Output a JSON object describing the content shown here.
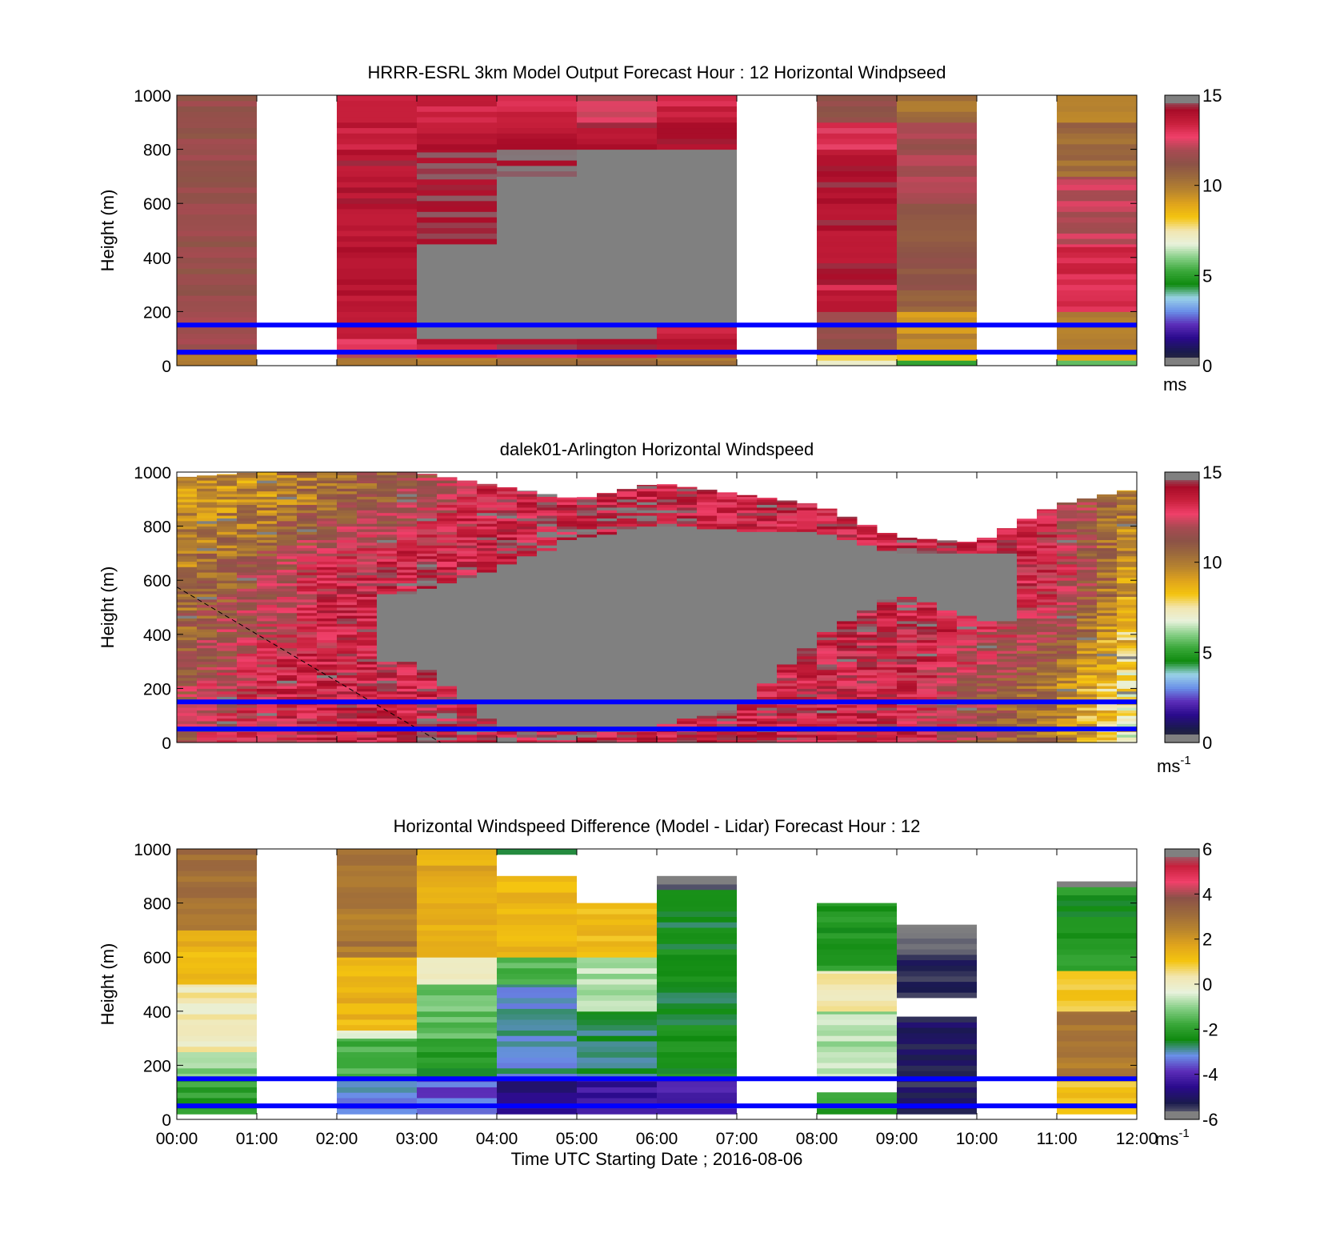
{
  "colors": {
    "background": "#ffffff",
    "no_data_gray": "#808080",
    "reference_lines": "#0000ff",
    "colormap_speed": [
      "#303030",
      "#1a1a4e",
      "#2a0a8c",
      "#5b2db8",
      "#6a90e8",
      "#9ad2e8",
      "#108a10",
      "#3aa83a",
      "#86cf86",
      "#e8f2dc",
      "#f2e6b0",
      "#f4c410",
      "#e0a41c",
      "#b8842e",
      "#9c6a3c",
      "#8c5248",
      "#a84a52",
      "#f0406a",
      "#c8203c",
      "#a80c28",
      "#808080"
    ],
    "colormap_diff": [
      "#808080",
      "#1a1a4e",
      "#2a0a8c",
      "#5b2db8",
      "#6a90e8",
      "#108a10",
      "#3aa83a",
      "#86cf86",
      "#e8f2dc",
      "#f2e6b0",
      "#f4c410",
      "#e0a41c",
      "#b8842e",
      "#9c6a3c",
      "#8c5248",
      "#f0406a",
      "#c8203c",
      "#808080"
    ]
  },
  "chart_data": [
    {
      "type": "heatmap",
      "panel": "model",
      "title": "HRRR-ESRL 3km Model Output   Forecast Hour : 12 Horizontal Windpseed",
      "ylabel": "Height (m)",
      "ylim": [
        0,
        1000
      ],
      "yticks": [
        "0",
        "200",
        "400",
        "600",
        "800",
        "1000"
      ],
      "colorbar": {
        "ticks": [
          "0",
          "5",
          "10",
          "15"
        ],
        "range": [
          0,
          15
        ],
        "unit": "ms",
        "unit_sup": ""
      },
      "hlines": [
        50,
        150
      ],
      "grid": false,
      "columns": [
        {
          "t0": 0,
          "t1": 1,
          "layers": [
            [
              0,
              20,
              10.5
            ],
            [
              20,
              40,
              9.5
            ],
            [
              40,
              200,
              11.8
            ],
            [
              200,
              1000,
              11.5
            ]
          ]
        },
        {
          "t0": 2,
          "t1": 3,
          "layers": [
            [
              0,
              30,
              10.2
            ],
            [
              30,
              60,
              12.0
            ],
            [
              60,
              100,
              13.0
            ],
            [
              100,
              600,
              13.8
            ],
            [
              600,
              800,
              14.0
            ],
            [
              800,
              900,
              13.6
            ],
            [
              900,
              1000,
              13.2
            ]
          ]
        },
        {
          "t0": 3,
          "t1": 4,
          "layers": [
            [
              0,
              30,
              10.2
            ],
            [
              30,
              60,
              13.4
            ],
            [
              60,
              100,
              13.8
            ],
            [
              100,
              450,
              null
            ],
            [
              450,
              800,
              14.4
            ],
            [
              800,
              900,
              13.8
            ],
            [
              900,
              1000,
              13.5
            ]
          ]
        },
        {
          "t0": 4,
          "t1": 5,
          "layers": [
            [
              0,
              30,
              10.2
            ],
            [
              30,
              60,
              13.4
            ],
            [
              60,
              100,
              14.2
            ],
            [
              100,
              700,
              null
            ],
            [
              700,
              800,
              14.6
            ],
            [
              800,
              900,
              13.8
            ],
            [
              900,
              1000,
              13.3
            ]
          ]
        },
        {
          "t0": 5,
          "t1": 6,
          "layers": [
            [
              0,
              30,
              10.2
            ],
            [
              30,
              60,
              13.4
            ],
            [
              60,
              100,
              14.2
            ],
            [
              100,
              800,
              null
            ],
            [
              800,
              900,
              14.0
            ],
            [
              900,
              1000,
              12.2
            ]
          ]
        },
        {
          "t0": 6,
          "t1": 7,
          "layers": [
            [
              0,
              30,
              10.2
            ],
            [
              30,
              60,
              12.0
            ],
            [
              60,
              150,
              13.6
            ],
            [
              150,
              800,
              null
            ],
            [
              800,
              900,
              14.2
            ],
            [
              900,
              1000,
              13.5
            ]
          ]
        },
        {
          "t0": 8,
          "t1": 9,
          "layers": [
            [
              0,
              20,
              7.0
            ],
            [
              20,
              40,
              8.2
            ],
            [
              40,
              200,
              11.5
            ],
            [
              200,
              300,
              13.5
            ],
            [
              300,
              800,
              14.1
            ],
            [
              800,
              900,
              12.9
            ],
            [
              900,
              1000,
              11.5
            ]
          ]
        },
        {
          "t0": 9,
          "t1": 10,
          "layers": [
            [
              0,
              20,
              5.5
            ],
            [
              20,
              40,
              8.5
            ],
            [
              40,
              200,
              9.5
            ],
            [
              200,
              600,
              11.0
            ],
            [
              600,
              900,
              11.8
            ],
            [
              900,
              1000,
              10.2
            ]
          ]
        },
        {
          "t0": 11,
          "t1": 12,
          "layers": [
            [
              0,
              20,
              6.0
            ],
            [
              20,
              40,
              8.5
            ],
            [
              40,
              200,
              9.8
            ],
            [
              200,
              450,
              13.2
            ],
            [
              450,
              700,
              12.2
            ],
            [
              700,
              900,
              10.5
            ],
            [
              900,
              1000,
              9.6
            ]
          ]
        }
      ]
    },
    {
      "type": "heatmap",
      "panel": "lidar",
      "title": "dalek01-Arlington  Horizontal Windspeed",
      "ylabel": "Height (m)",
      "ylim": [
        0,
        1000
      ],
      "yticks": [
        "0",
        "200",
        "400",
        "600",
        "800",
        "1000"
      ],
      "colorbar": {
        "ticks": [
          "0",
          "5",
          "10",
          "15"
        ],
        "range": [
          0,
          15
        ],
        "unit": "ms",
        "unit_sup": "-1"
      },
      "hlines": [
        50,
        150
      ],
      "grid": false,
      "dashed_line": [
        [
          0,
          575
        ],
        [
          3.3,
          0
        ]
      ],
      "profile_bin_hours": 0.25,
      "sample_times": [
        0,
        1,
        2,
        3,
        4,
        5,
        6,
        7,
        8,
        9,
        10,
        11,
        12
      ],
      "low_layer_speed": [
        11.5,
        13.0,
        13.5,
        13.8,
        14.0,
        14.0,
        13.5,
        13.8,
        13.5,
        13.5,
        11.5,
        10.0,
        7.0
      ],
      "mid_layer_speed": [
        10.0,
        11.5,
        13.5,
        14.0,
        14.0,
        14.0,
        14.0,
        14.0,
        14.0,
        14.0,
        14.0,
        13.0,
        9.0
      ],
      "upper_layer_speed": [
        9.5,
        9.5,
        10.5,
        11.5,
        13.5,
        14.0,
        14.0,
        13.5,
        13.5,
        13.5,
        13.5,
        12.5,
        9.5
      ],
      "no_data_base_m": [
        null,
        null,
        null,
        300,
        60,
        60,
        60,
        120,
        380,
        550,
        450,
        null,
        null
      ],
      "no_data_top_m": [
        null,
        null,
        null,
        550,
        640,
        750,
        800,
        780,
        780,
        700,
        700,
        null,
        null
      ],
      "profile_top_m": [
        980,
        1000,
        1000,
        1000,
        950,
        900,
        960,
        920,
        880,
        760,
        740,
        880,
        940
      ]
    },
    {
      "type": "heatmap",
      "panel": "difference",
      "title": "Horizontal Windspeed Difference (Model - Lidar) Forecast Hour : 12",
      "xlabel": "Time UTC  Starting Date ; 2016-08-06",
      "ylabel": "Height (m)",
      "ylim": [
        0,
        1000
      ],
      "xlim": [
        0,
        12
      ],
      "xticks": [
        "00:00",
        "01:00",
        "02:00",
        "03:00",
        "04:00",
        "05:00",
        "06:00",
        "07:00",
        "08:00",
        "09:00",
        "10:00",
        "11:00",
        "12:00"
      ],
      "yticks": [
        "0",
        "200",
        "400",
        "600",
        "800",
        "1000"
      ],
      "colorbar": {
        "ticks": [
          "-6",
          "-4",
          "-2",
          "0",
          "2",
          "4",
          "6"
        ],
        "range": [
          -6,
          6
        ],
        "unit": "ms",
        "unit_sup": "-1"
      },
      "hlines": [
        50,
        150
      ],
      "grid": false,
      "columns": [
        {
          "t0": 0,
          "t1": 1,
          "layers": [
            [
              20,
              150,
              -2.0
            ],
            [
              150,
              250,
              -1.0
            ],
            [
              250,
              500,
              0.2
            ],
            [
              500,
              700,
              1.4
            ],
            [
              700,
              1000,
              3.0
            ]
          ]
        },
        {
          "t0": 2,
          "t1": 3,
          "layers": [
            [
              20,
              150,
              -3.2
            ],
            [
              150,
              300,
              -1.6
            ],
            [
              300,
              330,
              -0.1
            ],
            [
              330,
              600,
              1.4
            ],
            [
              600,
              1000,
              2.8
            ]
          ]
        },
        {
          "t0": 3,
          "t1": 4,
          "layers": [
            [
              20,
              150,
              -3.5
            ],
            [
              150,
              300,
              -2.2
            ],
            [
              300,
              500,
              -1.4
            ],
            [
              500,
              600,
              0.2
            ],
            [
              600,
              1000,
              1.6
            ]
          ]
        },
        {
          "t0": 4,
          "t1": 5,
          "layers": [
            [
              20,
              150,
              -4.6
            ],
            [
              150,
              500,
              -3.0
            ],
            [
              500,
              600,
              -1.5
            ],
            [
              600,
              900,
              1.4
            ],
            [
              980,
              1000,
              -2.5
            ]
          ]
        },
        {
          "t0": 5,
          "t1": 6,
          "layers": [
            [
              20,
              150,
              -4.4
            ],
            [
              150,
              400,
              -2.6
            ],
            [
              400,
              600,
              -0.8
            ],
            [
              600,
              800,
              1.2
            ]
          ]
        },
        {
          "t0": 6,
          "t1": 7,
          "layers": [
            [
              20,
              150,
              -4.2
            ],
            [
              150,
              850,
              -2.4
            ],
            [
              850,
              900,
              -6.0
            ]
          ]
        },
        {
          "t0": 8,
          "t1": 9,
          "layers": [
            [
              20,
              100,
              -2.0
            ],
            [
              150,
              400,
              -0.8
            ],
            [
              400,
              550,
              0.4
            ],
            [
              550,
              800,
              -2.2
            ]
          ]
        },
        {
          "t0": 9,
          "t1": 10,
          "layers": [
            [
              20,
              380,
              -5.2
            ],
            [
              450,
              630,
              -5.5
            ],
            [
              630,
              720,
              -6.0
            ]
          ]
        },
        {
          "t0": 11,
          "t1": 12,
          "layers": [
            [
              20,
              150,
              1.2
            ],
            [
              150,
              400,
              2.8
            ],
            [
              400,
              550,
              1.0
            ],
            [
              550,
              860,
              -2.2
            ],
            [
              860,
              880,
              -6.0
            ]
          ]
        }
      ]
    }
  ]
}
